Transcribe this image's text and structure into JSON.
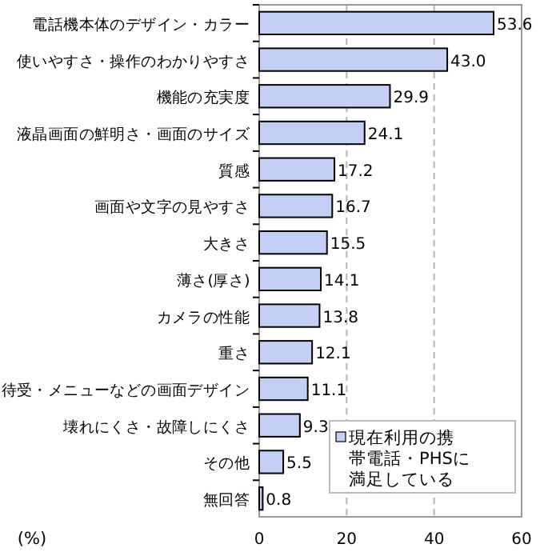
{
  "chart_data": {
    "type": "bar",
    "orientation": "horizontal",
    "xlabel": "(%)",
    "categories": [
      "電話機本体のデザイン・カラー",
      "使いやすさ・操作のわかりやすさ",
      "機能の充実度",
      "液晶画面の鮮明さ・画面のサイズ",
      "質感",
      "画面や文字の見やすさ",
      "大きさ",
      "薄さ(厚さ)",
      "カメラの性能",
      "重さ",
      "待受・メニューなどの画面デザイン",
      "壊れにくさ・故障しにくさ",
      "その他",
      "無回答"
    ],
    "series": [
      {
        "name": "現在利用の携帯電話・PHSに満足している",
        "color": "#c3cff5",
        "values": [
          53.6,
          43.0,
          29.9,
          24.1,
          17.2,
          16.7,
          15.5,
          14.1,
          13.8,
          12.1,
          11.1,
          9.3,
          5.5,
          0.8
        ],
        "value_labels": [
          "53.6",
          "43.0",
          "29.9",
          "24.1",
          "17.2",
          "16.7",
          "15.5",
          "14.1",
          "13.8",
          "12.1",
          "11.1",
          "9.3",
          "5.5",
          "0.8"
        ]
      }
    ],
    "xlim": [
      0,
      60
    ],
    "xticks": [
      0,
      20,
      40,
      60
    ],
    "grid": "x",
    "legend": "bottom right"
  }
}
